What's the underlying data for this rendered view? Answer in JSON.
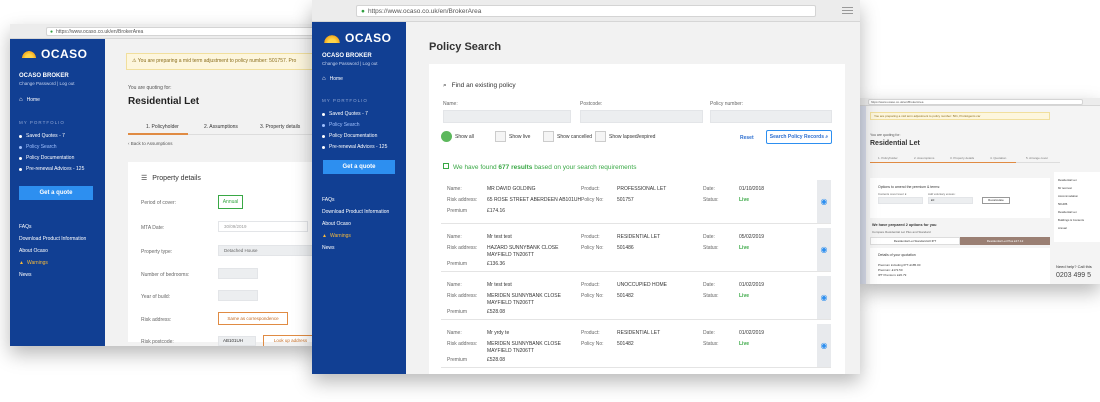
{
  "left_window": {
    "url": "https://www.ocaso.co.uk/en/BrokerArea",
    "logo": "OCASO",
    "broker_title": "OCASO BROKER",
    "change_password": "Change Password",
    "log_out": "Log out",
    "home": "Home",
    "portfolio_heading": "MY PORTFOLIO",
    "saved_quotes": "Saved Quotes",
    "saved_quotes_count": "7",
    "policy_search": "Policy Search",
    "policy_documentation": "Policy Documentation",
    "pre_renewal": "Pre-renewal Advices",
    "pre_renewal_count": "125",
    "get_quote": "Get a quote",
    "faqs": "FAQs",
    "download_product": "Download Product Information",
    "about": "About Ocaso",
    "warnings": "Warnings",
    "news": "News",
    "alert": "You are preparing a mid term adjustment to policy number: 501757. Pro",
    "quoting_for": "You are quoting for:",
    "product": "Residential Let",
    "steps": [
      "1. Policyholder",
      "2. Assumptions",
      "3. Property details"
    ],
    "back": "Back to Assumptions",
    "section_title": "Property details",
    "fields": {
      "period": "Period of cover:",
      "period_value": "Annual",
      "mta": "MTA Date:",
      "mta_value": "30/09/2019",
      "property_type": "Property type:",
      "property_type_value": "Detached House",
      "bedrooms": "Number of bedrooms:",
      "year": "Year of build:",
      "risk_address": "Risk address:",
      "same_as": "Same as correspondence",
      "postcode": "Risk postcode:",
      "postcode_value": "AB101UH",
      "lookup": "Look up address"
    }
  },
  "center_window": {
    "url": "https://www.ocaso.co.uk/en/BrokerArea",
    "page_title": "Policy Search",
    "find_label": "Find an existing policy",
    "name_label": "Name:",
    "postcode_label": "Postcode:",
    "policy_number_label": "Policy number:",
    "filters": [
      "Show all",
      "Show live",
      "Show cancelled",
      "Show lapsed/expired"
    ],
    "reset": "Reset",
    "search_button": "Search Policy Records",
    "result_prefix": "We have found ",
    "result_count": "677 results",
    "result_suffix": " based on your search requirements",
    "row_labels": {
      "name": "Name:",
      "risk": "Risk address:",
      "premium": "Premium",
      "product": "Product:",
      "policy_no": "Policy No:",
      "date": "Date:",
      "status": "Status:"
    },
    "results": [
      {
        "name": "MR DAVID GOLDING",
        "address": "65 ROSE STREET ABERDEEN AB101UH",
        "address2": "",
        "premium": "£174.16",
        "product": "PROFESSIONAL LET",
        "policy_no": "501757",
        "date": "01/10/2018",
        "status": "Live"
      },
      {
        "name": "Mr test test",
        "address": "HAZARD SUNNYBANK CLOSE",
        "address2": "MAYFIELD TN206TT",
        "premium": "£136.36",
        "product": "RESIDENTIAL LET",
        "policy_no": "501486",
        "date": "05/02/2019",
        "status": "Live"
      },
      {
        "name": "Mr test test",
        "address": "MERIDEN SUNNYBANK CLOSE",
        "address2": "MAYFIELD TN206TT",
        "premium": "£528.08",
        "product": "UNOCCUPIED HOME",
        "policy_no": "501482",
        "date": "01/02/2019",
        "status": "Live"
      },
      {
        "name": "Mr yrdy te",
        "address": "MERIDEN SUNNYBANK CLOSE",
        "address2": "MAYFIELD TN206TT",
        "premium": "£528.08",
        "product": "RESIDENTIAL LET",
        "policy_no": "501482",
        "date": "01/02/2019",
        "status": "Live"
      }
    ]
  },
  "right_window": {
    "url": "https://www.ocaso.co.uk/en/BrokerArea",
    "alert": "You are preparing a mid term adjustment to policy number: 501, Pro&Agents car",
    "quoting_for": "You are quoting for:",
    "product": "Residential Let",
    "steps": [
      "1. Policyholder",
      "2. Assumptions",
      "3. Property details",
      "4. Quotation",
      "5. Arrange cover"
    ],
    "options_title": "Options to amend the premium & terms:",
    "option_labels": [
      "Contents cover level: £",
      "Add voluntary excess:"
    ],
    "option_value": "£0",
    "recalculate": "Recalculate",
    "prepared": "We have prepared 2 options for you",
    "compare": "Compare Residential Let Plus and Standard",
    "opt_standard": "Residential Let Standard £0 IPT",
    "opt_plus": "Residential Let Plus £17.12",
    "details": "Details of your quotation",
    "premium_lines": [
      "Premium including IPT: £185.00",
      "Premium: £172.50",
      "IPT Premium: £20.79"
    ],
    "sidebar_lines": [
      "Residential Let",
      "Mr test test",
      "Accommodation",
      "501486",
      "Residential Let",
      "Buildings & Contents",
      "Annual"
    ],
    "help": "Need help? Call this",
    "phone": "0203 499 5"
  }
}
